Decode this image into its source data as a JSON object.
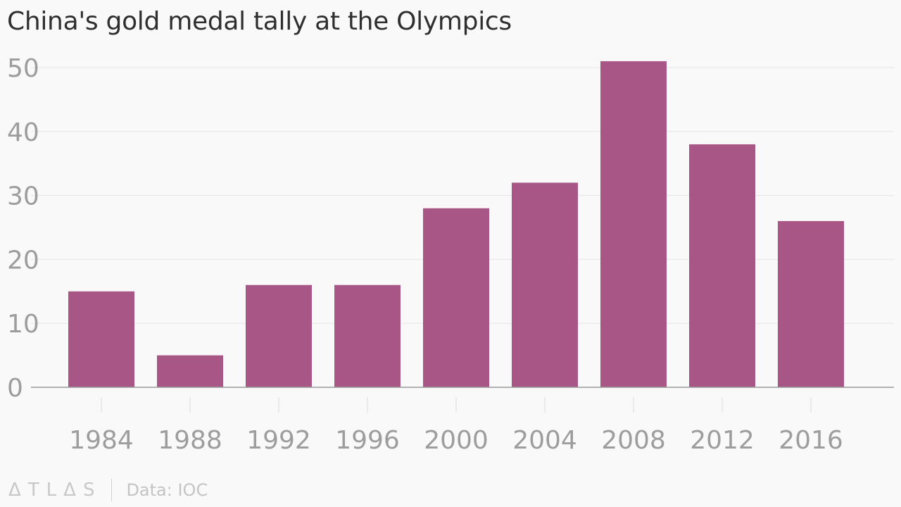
{
  "title": "China's gold medal tally at the Olympics",
  "footer": {
    "brand": "ΔTLΔS",
    "source": "Data: IOC"
  },
  "colors": {
    "bar": "#a85686",
    "grid": "#e6e6e6",
    "axis": "#9a9a9a",
    "tick_text": "#9d9d9d",
    "background": "#f9f9f9"
  },
  "chart_data": {
    "type": "bar",
    "categories": [
      "1984",
      "1988",
      "1992",
      "1996",
      "2000",
      "2004",
      "2008",
      "2012",
      "2016"
    ],
    "values": [
      15,
      5,
      16,
      16,
      28,
      32,
      51,
      38,
      26
    ],
    "ylim": [
      0,
      50
    ],
    "yticks": [
      0,
      10,
      20,
      30,
      40,
      50
    ],
    "grid": true
  }
}
